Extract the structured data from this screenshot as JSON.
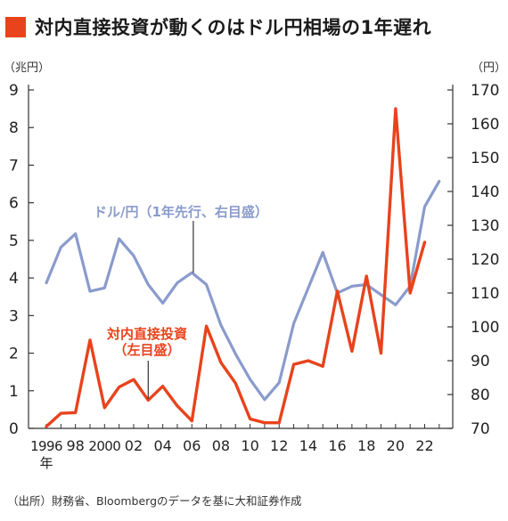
{
  "title": "対内直接投資が動くのはドル円相場の1年遅れ",
  "source": "（出所）財務省、Bloombergのデータを基に大和証券作成",
  "colors": {
    "accent": "#e8431c",
    "fdi": "#e8431c",
    "usdjpy": "#8a9bcc",
    "axis": "#333333"
  },
  "chart_data": {
    "type": "line",
    "x": [
      1996,
      1997,
      1998,
      1999,
      2000,
      2001,
      2002,
      2003,
      2004,
      2005,
      2006,
      2007,
      2008,
      2009,
      2010,
      2011,
      2012,
      2013,
      2014,
      2015,
      2016,
      2017,
      2018,
      2019,
      2020,
      2021,
      2022,
      2023
    ],
    "x_tick_labels": [
      "1996",
      "98",
      "2000",
      "02",
      "04",
      "06",
      "08",
      "10",
      "12",
      "14",
      "16",
      "18",
      "20",
      "22"
    ],
    "x_tick_values": [
      1996,
      1998,
      2000,
      2002,
      2004,
      2006,
      2008,
      2010,
      2012,
      2014,
      2016,
      2018,
      2020,
      2022
    ],
    "x_unit": "年",
    "left_axis": {
      "unit": "（兆円）",
      "range": [
        0,
        9
      ],
      "ticks": [
        "0",
        "1",
        "2",
        "3",
        "4",
        "5",
        "6",
        "7",
        "8",
        "9"
      ]
    },
    "right_axis": {
      "unit": "（円）",
      "range": [
        70,
        170
      ],
      "ticks": [
        "70",
        "80",
        "90",
        "100",
        "110",
        "120",
        "130",
        "140",
        "150",
        "160",
        "170"
      ]
    },
    "series": [
      {
        "name": "ドル/円（1年先行、右目盛）",
        "axis": "right",
        "color": "#8a9bcc",
        "x": [
          1996,
          1997,
          1998,
          1999,
          2000,
          2001,
          2002,
          2003,
          2004,
          2005,
          2006,
          2007,
          2008,
          2009,
          2010,
          2011,
          2012,
          2013,
          2014,
          2015,
          2016,
          2017,
          2018,
          2019,
          2020,
          2021,
          2022,
          2023
        ],
        "values": [
          113,
          123.5,
          127.5,
          110.5,
          111.5,
          126,
          121,
          112.5,
          107,
          113,
          116,
          112.5,
          100.5,
          92,
          84.5,
          78.5,
          83.5,
          101,
          111.5,
          122,
          110,
          112,
          112.5,
          109.5,
          106.5,
          112,
          135.5,
          143
        ]
      },
      {
        "name": "対内直接投資（左目盛）",
        "axis": "left",
        "color": "#e8431c",
        "x": [
          1996,
          1997,
          1998,
          1999,
          2000,
          2001,
          2002,
          2003,
          2004,
          2005,
          2006,
          2007,
          2008,
          2009,
          2010,
          2011,
          2012,
          2013,
          2014,
          2015,
          2016,
          2017,
          2018,
          2019,
          2020,
          2021,
          2022
        ],
        "values": [
          0.05,
          0.4,
          0.42,
          2.35,
          0.55,
          1.1,
          1.3,
          0.75,
          1.12,
          0.6,
          0.2,
          2.72,
          1.75,
          1.2,
          0.25,
          0.15,
          0.15,
          1.7,
          1.8,
          1.65,
          3.65,
          2.05,
          4.05,
          2.0,
          8.5,
          3.6,
          4.95
        ]
      }
    ],
    "annotations": [
      {
        "text_line1": "ドル/円（1年先行、右目盛）",
        "series": "usdjpy"
      },
      {
        "text_line1": "対内直接投資",
        "text_line2": "（左目盛）",
        "series": "fdi"
      }
    ],
    "grid": false
  }
}
